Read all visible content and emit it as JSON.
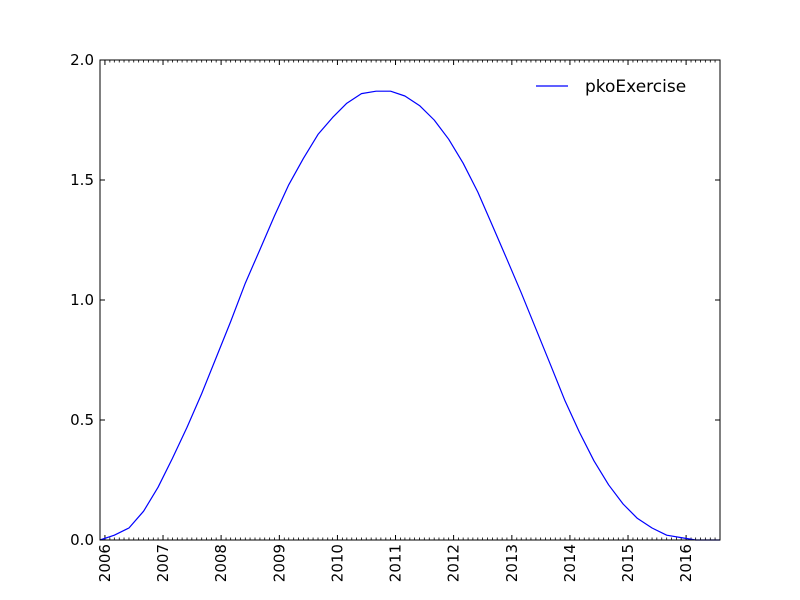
{
  "chart_data": {
    "type": "line",
    "title": "",
    "xlabel": "",
    "ylabel": "",
    "xlim": [
      "2005-12-01",
      "2016-08-01"
    ],
    "ylim": [
      0.0,
      2.0
    ],
    "grid": false,
    "legend_position": "top-right",
    "x_tick_labels": [
      "2006",
      "2007",
      "2008",
      "2009",
      "2010",
      "2011",
      "2012",
      "2013",
      "2014",
      "2015",
      "2016"
    ],
    "y_tick_labels": [
      "0.0",
      "0.5",
      "1.0",
      "1.5",
      "2.0"
    ],
    "series": [
      {
        "name": "pkoExercise",
        "color": "#0000ff",
        "x": [
          "2005-12-01",
          "2006-03-01",
          "2006-06-01",
          "2006-09-01",
          "2006-12-01",
          "2007-03-01",
          "2007-06-01",
          "2007-09-01",
          "2007-12-01",
          "2008-03-01",
          "2008-06-01",
          "2008-09-01",
          "2008-12-01",
          "2009-03-01",
          "2009-06-01",
          "2009-09-01",
          "2009-12-01",
          "2010-03-01",
          "2010-06-01",
          "2010-09-01",
          "2010-12-01",
          "2011-03-01",
          "2011-06-01",
          "2011-09-01",
          "2011-12-01",
          "2012-03-01",
          "2012-06-01",
          "2012-09-01",
          "2012-12-01",
          "2013-03-01",
          "2013-06-01",
          "2013-09-01",
          "2013-12-01",
          "2014-03-01",
          "2014-06-01",
          "2014-09-01",
          "2014-12-01",
          "2015-03-01",
          "2015-06-01",
          "2015-09-01",
          "2015-12-01",
          "2016-03-01",
          "2016-06-01",
          "2016-08-01"
        ],
        "y": [
          0.0,
          0.02,
          0.05,
          0.12,
          0.22,
          0.34,
          0.47,
          0.61,
          0.76,
          0.91,
          1.07,
          1.21,
          1.35,
          1.48,
          1.59,
          1.69,
          1.76,
          1.82,
          1.86,
          1.87,
          1.87,
          1.85,
          1.81,
          1.75,
          1.67,
          1.57,
          1.45,
          1.31,
          1.17,
          1.03,
          0.88,
          0.73,
          0.58,
          0.45,
          0.33,
          0.23,
          0.15,
          0.09,
          0.05,
          0.02,
          0.01,
          0.0,
          0.0,
          0.0
        ]
      }
    ]
  }
}
